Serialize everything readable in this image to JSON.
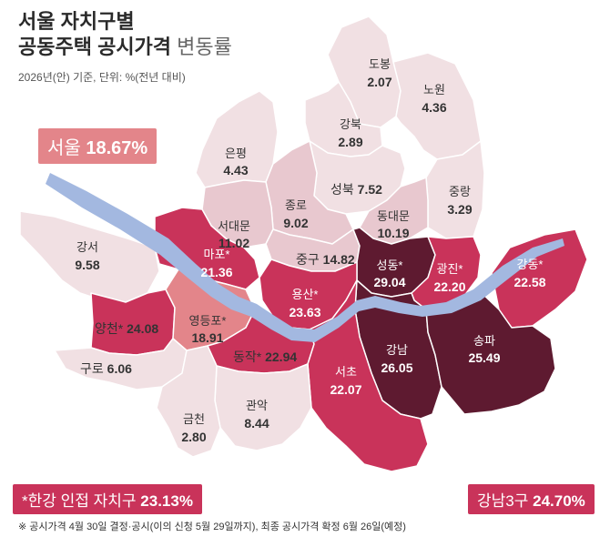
{
  "title": {
    "line1": "서울 자치구별",
    "line2_bold": "공동주택 공시가격",
    "line2_light": "변동률"
  },
  "subtitle": "2026년(안) 기준, 단위: %(전년 대비)",
  "seoul": {
    "label": "서울",
    "value": "18.67%"
  },
  "han_river": {
    "label": "*한강 인접 자치구",
    "value": "23.13%"
  },
  "gangnam3": {
    "label": "강남3구",
    "value": "24.70%"
  },
  "footnote": "※ 공시가격 4월 30일 결정·공시(이의 신청 5월 29일까지), 최종 공시가격 확정 6월 26일(예정)",
  "colors": {
    "lightest": "#f1e0e3",
    "light": "#e8c8cf",
    "medium": "#e3858a",
    "strong": "#c9335a",
    "darkest": "#5e1a30",
    "river": "#a3b8e0"
  },
  "districts": {
    "dobong": {
      "name": "도봉",
      "value": "2.07"
    },
    "nowon": {
      "name": "노원",
      "value": "4.36"
    },
    "gangbuk": {
      "name": "강북",
      "value": "2.89"
    },
    "eunpyeong": {
      "name": "은평",
      "value": "4.43"
    },
    "seongbuk": {
      "name": "성북",
      "value": "7.52"
    },
    "jungnang": {
      "name": "중랑",
      "value": "3.29"
    },
    "jongno": {
      "name": "종로",
      "value": "9.02"
    },
    "seodaemun": {
      "name": "서대문",
      "value": "11.02"
    },
    "dongdaemun": {
      "name": "동대문",
      "value": "10.19"
    },
    "gangseo": {
      "name": "강서",
      "value": "9.58"
    },
    "mapo": {
      "name": "마포*",
      "value": "21.36"
    },
    "junggu": {
      "name": "중구",
      "value": "14.82"
    },
    "seongdong": {
      "name": "성동*",
      "value": "29.04"
    },
    "gwangjin": {
      "name": "광진*",
      "value": "22.20"
    },
    "gangdong": {
      "name": "강동*",
      "value": "22.58"
    },
    "yongsan": {
      "name": "용산*",
      "value": "23.63"
    },
    "yangcheon": {
      "name": "양천*",
      "value": "24.08"
    },
    "yeongdeungpo": {
      "name": "영등포*",
      "value": "18.91"
    },
    "dongjak": {
      "name": "동작*",
      "value": "22.94"
    },
    "guro": {
      "name": "구로",
      "value": "6.06"
    },
    "gangnam": {
      "name": "강남",
      "value": "26.05"
    },
    "songpa": {
      "name": "송파",
      "value": "25.49"
    },
    "seocho": {
      "name": "서초",
      "value": "22.07"
    },
    "gwanak": {
      "name": "관악",
      "value": "8.44"
    },
    "geumcheon": {
      "name": "금천",
      "value": "2.80"
    }
  }
}
